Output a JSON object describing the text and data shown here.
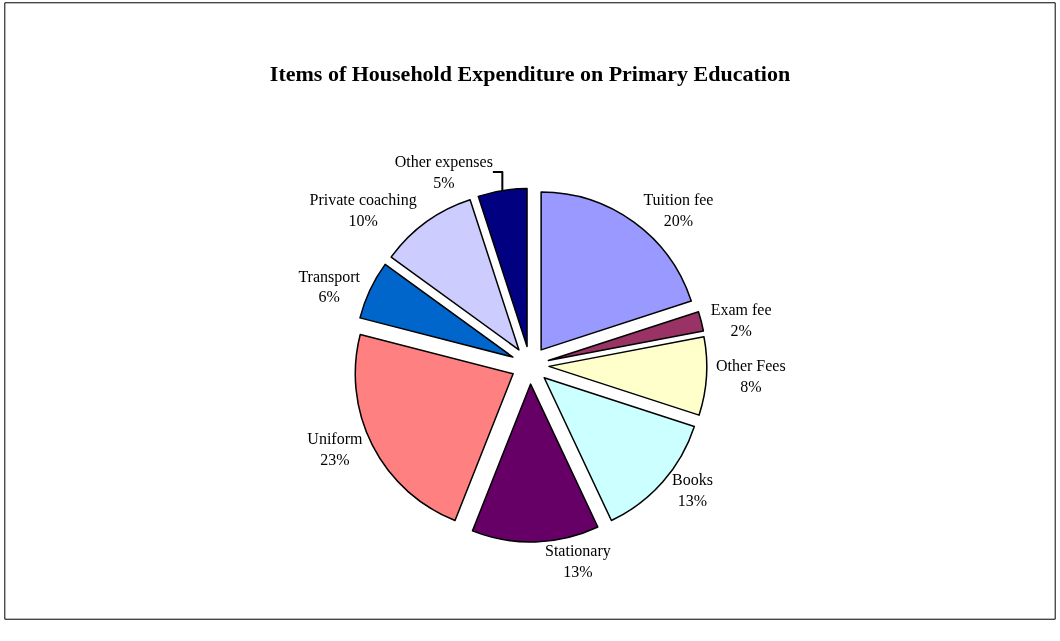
{
  "chart_data": {
    "type": "pie",
    "title": "Items of Household Expenditure on Primary Education",
    "categories": [
      "Tuition fee",
      "Exam fee",
      "Other Fees",
      "Books",
      "Stationary",
      "Uniform",
      "Transport",
      "Private coaching",
      "Other expenses"
    ],
    "values": [
      20,
      2,
      8,
      13,
      13,
      23,
      6,
      10,
      5
    ],
    "value_labels": [
      "20%",
      "2%",
      "8%",
      "13%",
      "13%",
      "23%",
      "6%",
      "10%",
      "5%"
    ],
    "colors": [
      "#9999ff",
      "#993366",
      "#ffffcc",
      "#ccffff",
      "#660066",
      "#ff8080",
      "#0066cc",
      "#ccccff",
      "#000080"
    ],
    "legend": false
  }
}
